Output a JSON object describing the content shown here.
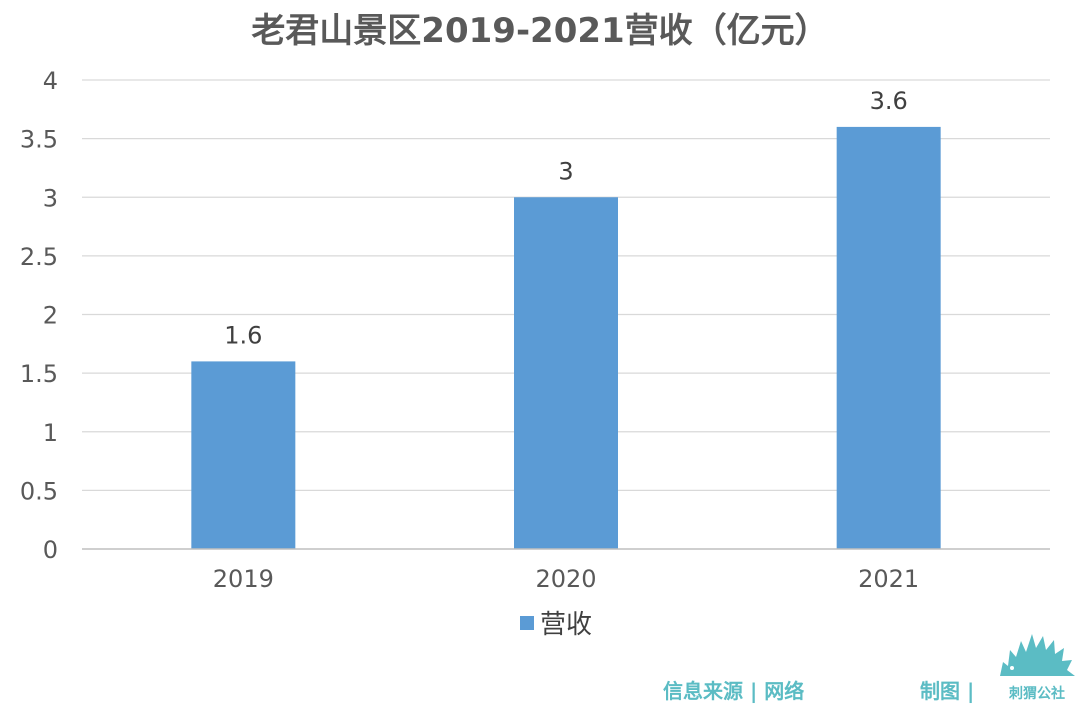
{
  "chart_data": {
    "type": "bar",
    "title": "老君山景区2019-2021营收（亿元）",
    "categories": [
      "2019",
      "2020",
      "2021"
    ],
    "series": [
      {
        "name": "营收",
        "values": [
          1.6,
          3,
          3.6
        ],
        "color": "#5b9bd5"
      }
    ],
    "data_labels": [
      "1.6",
      "3",
      "3.6"
    ],
    "ylim": [
      0,
      4
    ],
    "yticks": [
      "0",
      "0.5",
      "1",
      "1.5",
      "2",
      "2.5",
      "3",
      "3.5",
      "4"
    ],
    "xlabel": "",
    "ylabel": "",
    "grid": true,
    "legend": "bottom"
  },
  "footer": {
    "source": "信息来源 | 网络",
    "made_by": "制图 |",
    "brand": "刺猬公社",
    "brand_color": "#5bbcc4"
  }
}
